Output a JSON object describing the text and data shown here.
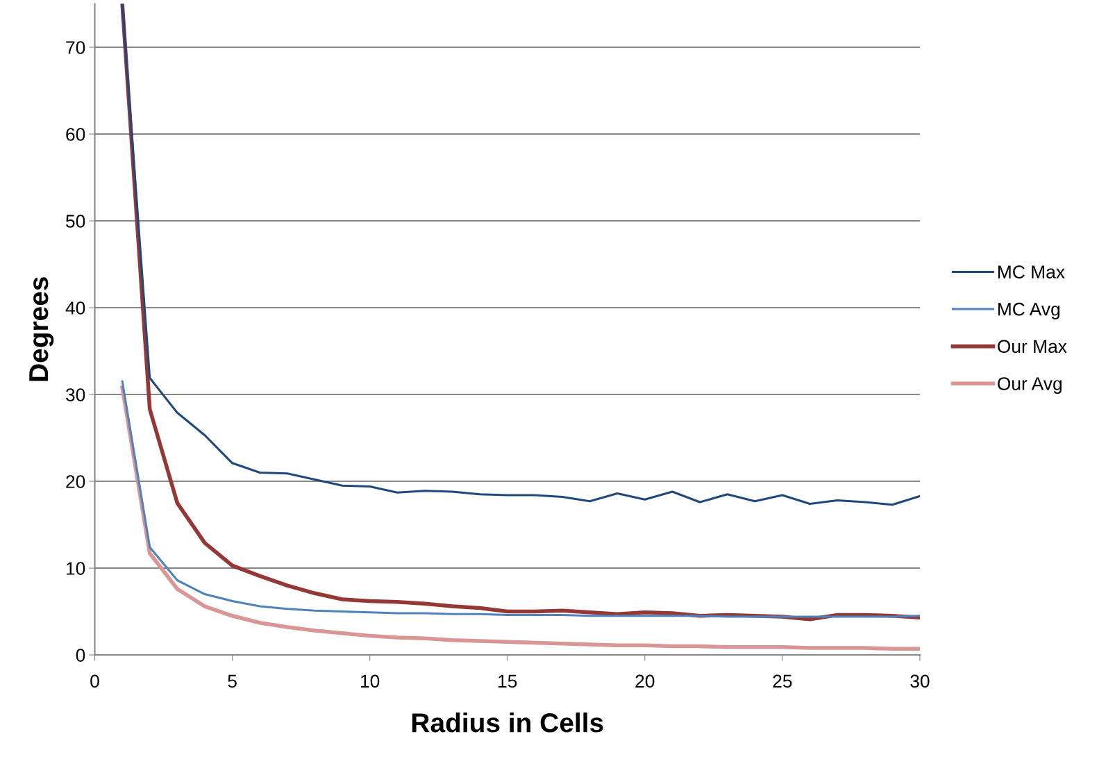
{
  "chart_data": {
    "type": "line",
    "xlabel": "Radius in Cells",
    "ylabel": "Degrees",
    "x": [
      1,
      2,
      3,
      4,
      5,
      6,
      7,
      8,
      9,
      10,
      11,
      12,
      13,
      14,
      15,
      16,
      17,
      18,
      19,
      20,
      21,
      22,
      23,
      24,
      25,
      26,
      27,
      28,
      29,
      30
    ],
    "series": [
      {
        "name": "MC Max",
        "color": "#1f497d",
        "values": [
          75,
          31.9,
          27.9,
          25.3,
          22.1,
          21.0,
          20.9,
          20.2,
          19.5,
          19.4,
          18.7,
          18.9,
          18.8,
          18.5,
          18.4,
          18.4,
          18.2,
          17.7,
          18.6,
          17.9,
          18.8,
          17.6,
          18.5,
          17.7,
          18.4,
          17.4,
          17.8,
          17.6,
          17.3,
          18.3
        ]
      },
      {
        "name": "MC Avg",
        "color": "#4f81bd",
        "values": [
          31.5,
          12.4,
          8.6,
          7.0,
          6.2,
          5.6,
          5.3,
          5.1,
          5.0,
          4.9,
          4.8,
          4.8,
          4.7,
          4.7,
          4.6,
          4.6,
          4.6,
          4.5,
          4.5,
          4.5,
          4.5,
          4.5,
          4.4,
          4.4,
          4.4,
          4.4,
          4.4,
          4.4,
          4.4,
          4.5
        ]
      },
      {
        "name": "Our Max",
        "color": "#953735",
        "values": [
          75,
          28.3,
          17.5,
          12.9,
          10.3,
          9.1,
          8.0,
          7.1,
          6.4,
          6.2,
          6.1,
          5.9,
          5.6,
          5.4,
          5.0,
          5.0,
          5.1,
          4.9,
          4.7,
          4.9,
          4.8,
          4.5,
          4.6,
          4.5,
          4.4,
          4.1,
          4.6,
          4.6,
          4.5,
          4.3
        ]
      },
      {
        "name": "Our Avg",
        "color": "#d99694",
        "values": [
          30.8,
          11.7,
          7.6,
          5.6,
          4.5,
          3.7,
          3.2,
          2.8,
          2.5,
          2.2,
          2.0,
          1.9,
          1.7,
          1.6,
          1.5,
          1.4,
          1.3,
          1.2,
          1.1,
          1.1,
          1.0,
          1.0,
          0.9,
          0.9,
          0.9,
          0.8,
          0.8,
          0.8,
          0.7,
          0.7
        ]
      }
    ],
    "xlim": [
      0,
      30
    ],
    "xticks": [
      0,
      5,
      10,
      15,
      20,
      25,
      30
    ],
    "ylim": [
      0,
      75
    ],
    "yticks": [
      0,
      10,
      20,
      30,
      40,
      50,
      60,
      70
    ],
    "grid": "y",
    "legend": "right",
    "marker": "none",
    "line_style": "solid"
  }
}
